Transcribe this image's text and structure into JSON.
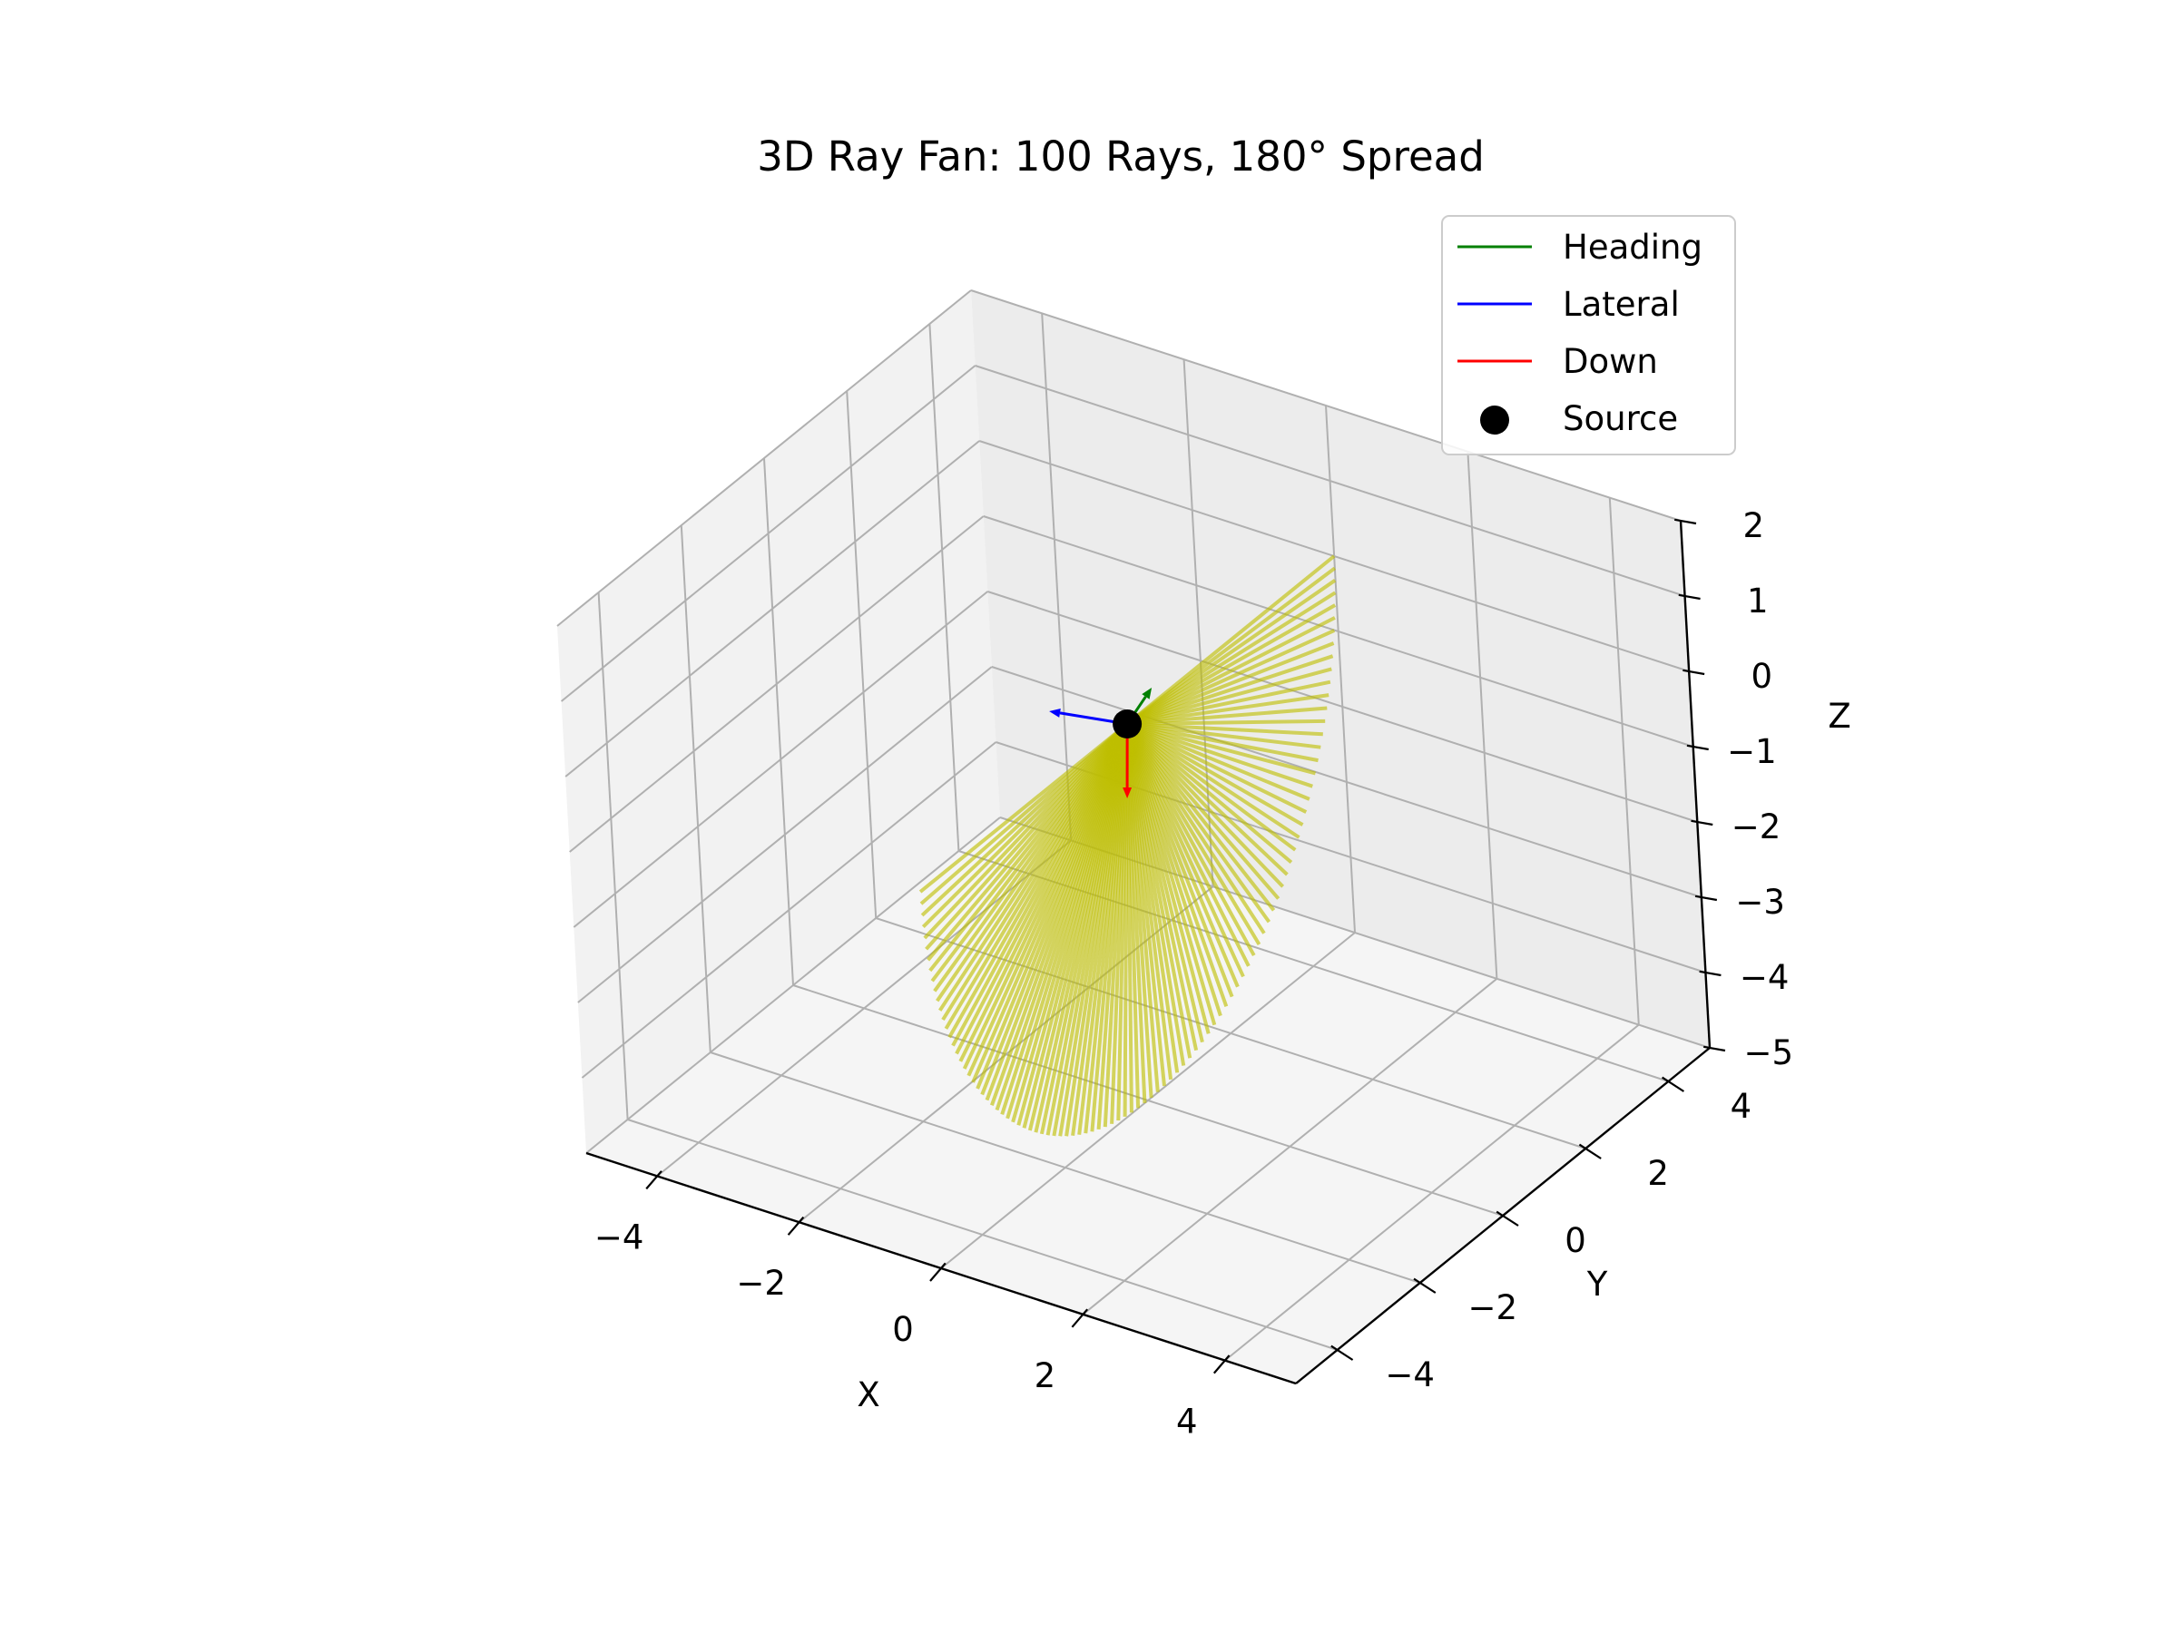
{
  "chart_data": {
    "type": "line",
    "title": "3D Ray Fan: 100 Rays, 180° Spread",
    "xlabel": "X",
    "ylabel": "Y",
    "zlabel": "Z",
    "xlim": [
      -5,
      5
    ],
    "ylim": [
      -5,
      5
    ],
    "zlim": [
      -5,
      2
    ],
    "x_ticks": [
      "−4",
      "−2",
      "0",
      "2",
      "4"
    ],
    "y_ticks": [
      "−4",
      "−2",
      "0",
      "2",
      "4"
    ],
    "z_ticks": [
      "−5",
      "−4",
      "−3",
      "−2",
      "−1",
      "0",
      "1",
      "2"
    ],
    "grid": true,
    "legend_placement": "upper right",
    "legend": [
      {
        "label": "Heading",
        "color": "#008000",
        "marker": "line"
      },
      {
        "label": "Lateral",
        "color": "#0000ff",
        "marker": "line"
      },
      {
        "label": "Down",
        "color": "#ff0000",
        "marker": "line"
      },
      {
        "label": "Source",
        "color": "#000000",
        "marker": "dot"
      }
    ],
    "source": {
      "x": 0,
      "y": 0,
      "z": 0
    },
    "rays": {
      "count": 100,
      "spread_deg": 180,
      "length": 5,
      "color": "#bfbf00",
      "plane": "y-z",
      "from": {
        "y": -5,
        "z": 0
      },
      "through": {
        "y": 0,
        "z": -5
      },
      "to": {
        "y": 5,
        "z": 0
      }
    },
    "vectors": [
      {
        "name": "Heading",
        "color": "#008000",
        "direction": [
          1,
          0,
          0
        ],
        "length": 1
      },
      {
        "name": "Lateral",
        "color": "#0000ff",
        "direction": [
          0,
          1,
          0
        ],
        "length": 1
      },
      {
        "name": "Down",
        "color": "#ff0000",
        "direction": [
          0,
          0,
          -1
        ],
        "length": 1
      }
    ]
  }
}
